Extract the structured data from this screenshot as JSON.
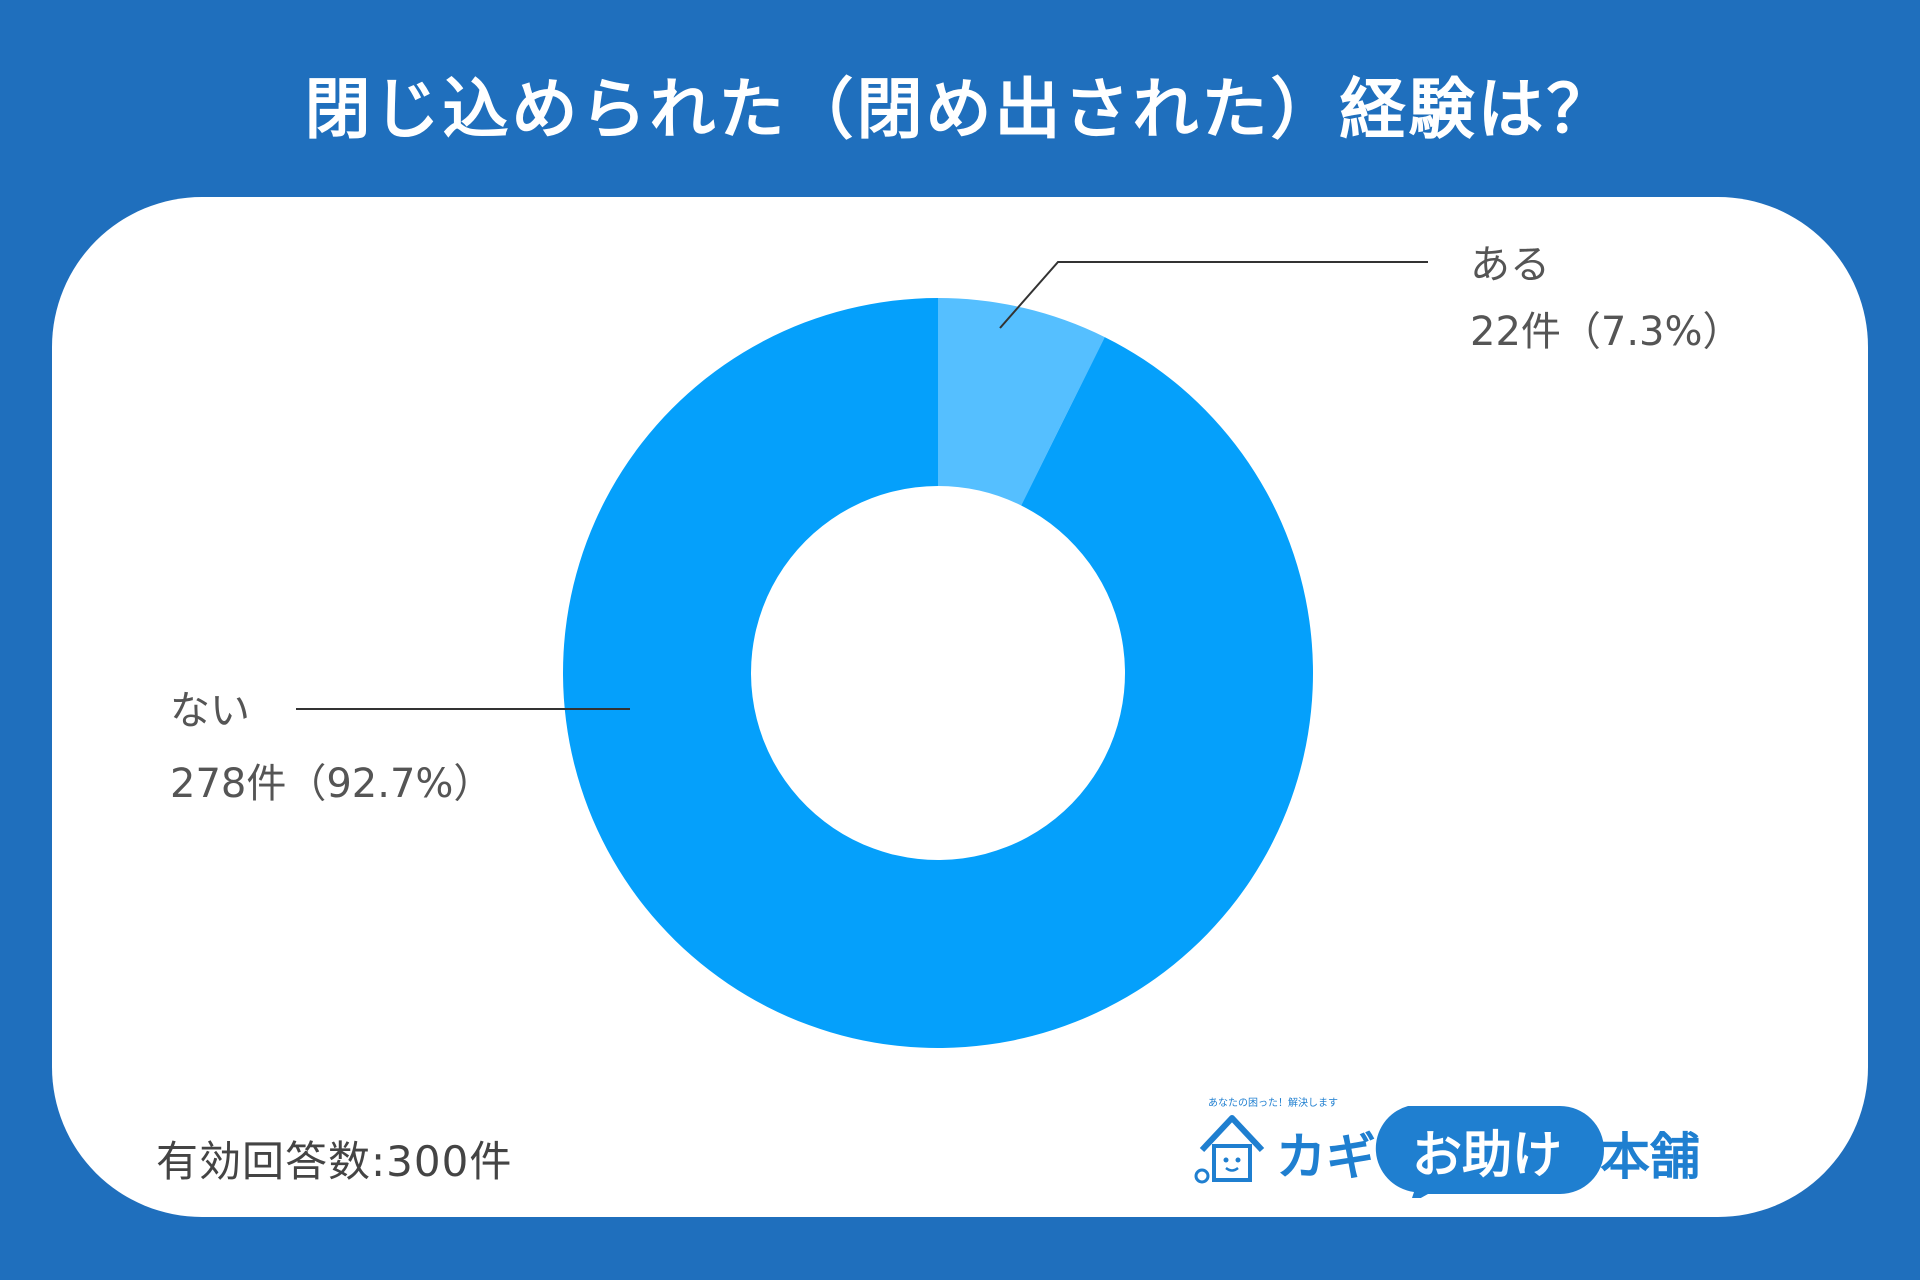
{
  "title": "閉じ込められた（閉め出された）経験は？",
  "footnote": "有効回答数:300件",
  "logo": {
    "tagline": "あなたの困った！解決します",
    "name_part1": "カギ",
    "name_part2": "お助け",
    "name_part3": "本舗"
  },
  "colors": {
    "background": "#1f6fbd",
    "card": "#ffffff",
    "slice_aru": "#55bfff",
    "slice_nai": "#05a0fb",
    "leader": "#333333",
    "label_text": "#555555"
  },
  "chart_data": {
    "type": "pie",
    "donut": true,
    "total": 300,
    "slices": [
      {
        "name": "ある",
        "count": 22,
        "value_label": "22件（7.3%）",
        "percent": 7.3,
        "color": "#55bfff"
      },
      {
        "name": "ない",
        "count": 278,
        "value_label": "278件（92.7%）",
        "percent": 92.7,
        "color": "#05a0fb"
      }
    ]
  }
}
